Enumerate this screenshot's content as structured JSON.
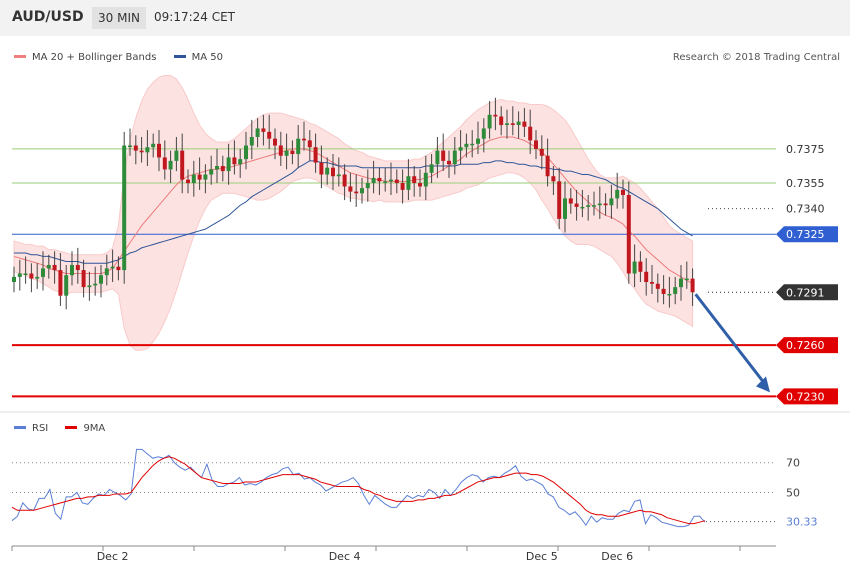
{
  "header": {
    "pair": "AUD/USD",
    "timeframe": "30 MIN",
    "time": "09:17:24 CET"
  },
  "legend_main": [
    {
      "label": "MA 20 + Bollinger Bands",
      "color": "#f08080"
    },
    {
      "label": "MA 50",
      "color": "#2f5597"
    }
  ],
  "research": "Research © 2018 Trading Central",
  "legend_rsi": [
    {
      "label": "RSI",
      "color": "#5b7fd6"
    },
    {
      "label": "9MA",
      "color": "#e00000"
    }
  ],
  "chart_data": [
    {
      "type": "candlestick",
      "title": "AUD/USD",
      "ylim": [
        0.7222,
        0.744
      ],
      "levels": [
        {
          "value": 0.7375,
          "label": "0.7375",
          "kind": "resistance-minor",
          "color": "#9acd78"
        },
        {
          "value": 0.7355,
          "label": "0.7355",
          "kind": "resistance-minor",
          "color": "#9acd78"
        },
        {
          "value": 0.734,
          "label": "0.7340",
          "kind": "dotted",
          "color": "#444444"
        },
        {
          "value": 0.7325,
          "label": "0.7325",
          "kind": "pivot",
          "color": "#2f5fd0"
        },
        {
          "value": 0.7291,
          "label": "0.7291",
          "kind": "last-price",
          "color": "#333333"
        },
        {
          "value": 0.726,
          "label": "0.7260",
          "kind": "support",
          "color": "#e00000"
        },
        {
          "value": 0.723,
          "label": "0.7230",
          "kind": "support",
          "color": "#e00000"
        }
      ],
      "x_labels": [
        {
          "label": "Dec 2",
          "index": 17
        },
        {
          "label": "Dec 4",
          "index": 57
        },
        {
          "label": "Dec 5",
          "index": 91
        },
        {
          "label": "Dec 6",
          "index": 104
        }
      ],
      "closes": [
        0.73,
        0.7302,
        0.7302,
        0.7299,
        0.73,
        0.7305,
        0.7307,
        0.7304,
        0.7289,
        0.7301,
        0.7307,
        0.7304,
        0.7294,
        0.7295,
        0.7296,
        0.7301,
        0.7305,
        0.7306,
        0.7304,
        0.7377,
        0.7377,
        0.7374,
        0.7373,
        0.7376,
        0.7378,
        0.737,
        0.7363,
        0.7368,
        0.7374,
        0.7357,
        0.7355,
        0.736,
        0.7357,
        0.736,
        0.7363,
        0.7365,
        0.7362,
        0.737,
        0.7366,
        0.7369,
        0.7377,
        0.7382,
        0.7387,
        0.7385,
        0.7381,
        0.7377,
        0.7371,
        0.7374,
        0.7372,
        0.7381,
        0.738,
        0.7376,
        0.7367,
        0.736,
        0.7364,
        0.7359,
        0.736,
        0.7353,
        0.735,
        0.7349,
        0.7352,
        0.7355,
        0.7358,
        0.7356,
        0.7356,
        0.7357,
        0.7355,
        0.7351,
        0.7359,
        0.7355,
        0.7353,
        0.7361,
        0.7366,
        0.7374,
        0.7368,
        0.7366,
        0.7374,
        0.7376,
        0.7378,
        0.7378,
        0.7381,
        0.7387,
        0.7395,
        0.7394,
        0.7389,
        0.739,
        0.7389,
        0.7391,
        0.7388,
        0.738,
        0.7375,
        0.7371,
        0.7359,
        0.7356,
        0.7334,
        0.7346,
        0.7343,
        0.7341,
        0.7341,
        0.7342,
        0.7342,
        0.7343,
        0.7342,
        0.7346,
        0.7351,
        0.7348,
        0.7302,
        0.7309,
        0.7303,
        0.7297,
        0.7296,
        0.7293,
        0.729,
        0.729,
        0.7294,
        0.7299,
        0.7299,
        0.7291
      ],
      "ma20": [
        0.7312,
        0.7311,
        0.731,
        0.7309,
        0.7308,
        0.7307,
        0.7305,
        0.7304,
        0.7303,
        0.7302,
        0.7302,
        0.7302,
        0.7302,
        0.7302,
        0.7302,
        0.7302,
        0.7303,
        0.7305,
        0.731,
        0.7315,
        0.732,
        0.7325,
        0.733,
        0.7334,
        0.7338,
        0.7342,
        0.7346,
        0.735,
        0.7354,
        0.7357,
        0.7359,
        0.736,
        0.7361,
        0.7362,
        0.7363,
        0.7363,
        0.7364,
        0.7364,
        0.7365,
        0.7366,
        0.7367,
        0.7368,
        0.7369,
        0.737,
        0.7371,
        0.7372,
        0.7373,
        0.7374,
        0.7375,
        0.7375,
        0.7375,
        0.7374,
        0.7373,
        0.7371,
        0.7369,
        0.7367,
        0.7365,
        0.7363,
        0.7361,
        0.736,
        0.7359,
        0.7358,
        0.7357,
        0.7357,
        0.7356,
        0.7356,
        0.7356,
        0.7356,
        0.7356,
        0.7357,
        0.7357,
        0.7358,
        0.7359,
        0.7361,
        0.7363,
        0.7365,
        0.7367,
        0.7369,
        0.7372,
        0.7374,
        0.7376,
        0.7378,
        0.738,
        0.7381,
        0.7382,
        0.7382,
        0.7382,
        0.7381,
        0.738,
        0.7378,
        0.7376,
        0.7373,
        0.737,
        0.7366,
        0.7362,
        0.7358,
        0.7354,
        0.735,
        0.7347,
        0.7344,
        0.7341,
        0.7338,
        0.7336,
        0.7335,
        0.7333,
        0.7331,
        0.7327,
        0.7324,
        0.732,
        0.7316,
        0.7313,
        0.731,
        0.7307,
        0.7304,
        0.7302,
        0.73,
        0.7298,
        0.7296
      ],
      "bb_width": [
        0.0009,
        0.0009,
        0.0009,
        0.001,
        0.001,
        0.0011,
        0.0011,
        0.0012,
        0.0012,
        0.0012,
        0.0011,
        0.0011,
        0.0011,
        0.0011,
        0.0011,
        0.0011,
        0.0011,
        0.0012,
        0.002,
        0.0045,
        0.006,
        0.0068,
        0.0073,
        0.0076,
        0.0076,
        0.0075,
        0.0072,
        0.0068,
        0.0062,
        0.0054,
        0.0045,
        0.0036,
        0.0028,
        0.0022,
        0.0018,
        0.0016,
        0.0015,
        0.0015,
        0.0016,
        0.0018,
        0.002,
        0.0022,
        0.0024,
        0.0025,
        0.0025,
        0.0024,
        0.0023,
        0.0021,
        0.0019,
        0.0018,
        0.0017,
        0.0016,
        0.0016,
        0.0016,
        0.0016,
        0.0016,
        0.0016,
        0.0015,
        0.0015,
        0.0014,
        0.0014,
        0.0013,
        0.0013,
        0.0012,
        0.0012,
        0.0012,
        0.0012,
        0.0012,
        0.0012,
        0.0012,
        0.0012,
        0.0013,
        0.0014,
        0.0015,
        0.0016,
        0.0017,
        0.0018,
        0.0019,
        0.002,
        0.0021,
        0.0022,
        0.0022,
        0.0022,
        0.0022,
        0.0022,
        0.0021,
        0.0021,
        0.0021,
        0.0022,
        0.0023,
        0.0025,
        0.0028,
        0.003,
        0.0032,
        0.0033,
        0.0034,
        0.0033,
        0.0031,
        0.0028,
        0.0025,
        0.0023,
        0.0022,
        0.0022,
        0.0023,
        0.0025,
        0.0028,
        0.003,
        0.0031,
        0.0032,
        0.0032,
        0.0031,
        0.003,
        0.0028,
        0.0026,
        0.0025,
        0.0025,
        0.0025,
        0.0025,
        0.0025
      ],
      "ma50": [
        0.7314,
        0.7314,
        0.7314,
        0.7313,
        0.7313,
        0.7312,
        0.7312,
        0.7311,
        0.731,
        0.7309,
        0.7309,
        0.7309,
        0.7308,
        0.7308,
        0.7308,
        0.7308,
        0.7308,
        0.7309,
        0.731,
        0.7312,
        0.7314,
        0.7315,
        0.7317,
        0.7318,
        0.7319,
        0.732,
        0.7321,
        0.7322,
        0.7323,
        0.7324,
        0.7325,
        0.7326,
        0.7327,
        0.7328,
        0.733,
        0.7332,
        0.7334,
        0.7336,
        0.7339,
        0.7342,
        0.7344,
        0.7347,
        0.7349,
        0.7351,
        0.7353,
        0.7355,
        0.7357,
        0.7359,
        0.7361,
        0.7364,
        0.7366,
        0.7368,
        0.7368,
        0.7367,
        0.7367,
        0.7366,
        0.7365,
        0.7365,
        0.7365,
        0.7365,
        0.7364,
        0.7364,
        0.7364,
        0.7364,
        0.7364,
        0.7364,
        0.7364,
        0.7364,
        0.7364,
        0.7364,
        0.7364,
        0.7365,
        0.7365,
        0.7365,
        0.7365,
        0.7365,
        0.7365,
        0.7366,
        0.7366,
        0.7366,
        0.7366,
        0.7367,
        0.7367,
        0.7368,
        0.7368,
        0.7367,
        0.7367,
        0.7366,
        0.7366,
        0.7365,
        0.7365,
        0.7364,
        0.7364,
        0.7363,
        0.7363,
        0.7362,
        0.7362,
        0.7361,
        0.736,
        0.736,
        0.7359,
        0.7358,
        0.7357,
        0.7355,
        0.7353,
        0.7352,
        0.735,
        0.7348,
        0.7346,
        0.7344,
        0.7342,
        0.734,
        0.7337,
        0.7334,
        0.7331,
        0.7328,
        0.7326,
        0.7324
      ]
    },
    {
      "type": "line",
      "title": "RSI",
      "ylim": [
        18,
        88
      ],
      "y_ticks": [
        70,
        50
      ],
      "last_value": 30.33,
      "last_label": "30.33",
      "series": [
        {
          "name": "RSI",
          "color": "#5b7fd6",
          "values": [
            31,
            34,
            43,
            39,
            38,
            46,
            46,
            52,
            36,
            32,
            47,
            47,
            50,
            43,
            42,
            46,
            49,
            48,
            52,
            50,
            48,
            45,
            49,
            79,
            79,
            76,
            73,
            74,
            73,
            75,
            70,
            67,
            65,
            67,
            63,
            60,
            69,
            58,
            54,
            54,
            56,
            57,
            60,
            55,
            56,
            55,
            57,
            60,
            62,
            63,
            66,
            67,
            62,
            63,
            59,
            60,
            57,
            55,
            51,
            53,
            55,
            57,
            58,
            60,
            56,
            48,
            42,
            48,
            45,
            42,
            40,
            40,
            44,
            48,
            46,
            48,
            47,
            52,
            50,
            46,
            52,
            48,
            52,
            57,
            60,
            62,
            61,
            57,
            60,
            61,
            60,
            63,
            65,
            68,
            61,
            58,
            59,
            57,
            55,
            49,
            47,
            40,
            38,
            35,
            37,
            33,
            28,
            34,
            30,
            33,
            32,
            32,
            36,
            38,
            37,
            44,
            45,
            29,
            35,
            33,
            30,
            29,
            28,
            27,
            27,
            28,
            34,
            34,
            30
          ]
        },
        {
          "name": "9MA",
          "color": "#e00000",
          "values": [
            40,
            38,
            38,
            38,
            38,
            39,
            40,
            41,
            42,
            43,
            44,
            45,
            46,
            46,
            47,
            47,
            48,
            48,
            48,
            49,
            49,
            49,
            50,
            55,
            60,
            64,
            68,
            71,
            73,
            74,
            73,
            71,
            69,
            66,
            63,
            60,
            59,
            58,
            57,
            56,
            56,
            56,
            56,
            57,
            57,
            57,
            58,
            59,
            60,
            61,
            62,
            62,
            62,
            62,
            61,
            60,
            59,
            57,
            56,
            55,
            54,
            54,
            54,
            54,
            54,
            52,
            51,
            49,
            48,
            46,
            45,
            44,
            44,
            44,
            44,
            45,
            45,
            46,
            46,
            47,
            48,
            48,
            49,
            51,
            53,
            55,
            57,
            58,
            59,
            60,
            60,
            61,
            62,
            63,
            63,
            63,
            62,
            62,
            61,
            59,
            57,
            54,
            51,
            48,
            45,
            42,
            38,
            36,
            35,
            35,
            34,
            34,
            34,
            35,
            36,
            37,
            38,
            37,
            37,
            36,
            35,
            33,
            32,
            31,
            30,
            29,
            29,
            30,
            31
          ]
        }
      ]
    }
  ]
}
